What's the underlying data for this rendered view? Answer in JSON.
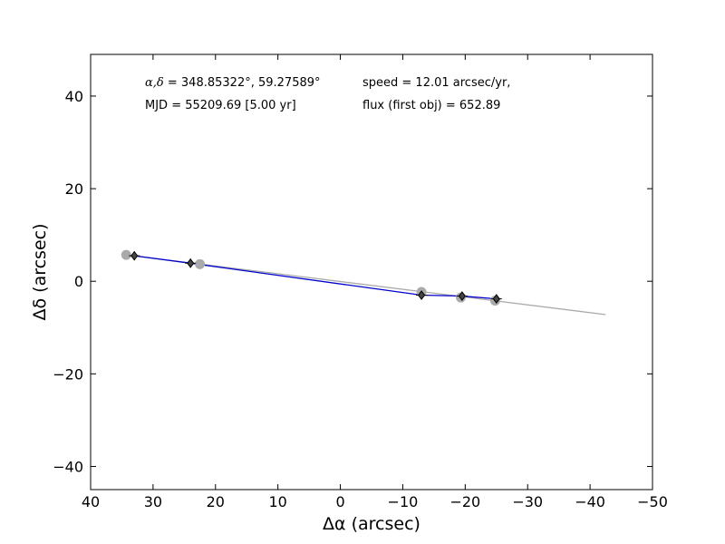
{
  "chart_data": {
    "type": "scatter",
    "xlabel": "Δα (arcsec)",
    "ylabel": "Δδ (arcsec)",
    "xlim": [
      40,
      -50
    ],
    "ylim": [
      -45,
      49
    ],
    "x_ticks": [
      40,
      30,
      20,
      10,
      0,
      -10,
      -20,
      -30,
      -40,
      -50
    ],
    "y_ticks": [
      40,
      20,
      0,
      -20,
      -40
    ],
    "x_tick_labels": [
      "40",
      "30",
      "20",
      "10",
      "0",
      "−10",
      "−20",
      "−30",
      "−40",
      "−50"
    ],
    "y_tick_labels": [
      "40",
      "20",
      "0",
      "−20",
      "−40"
    ],
    "grid": false,
    "annotations": {
      "coords_symbol": "α,δ",
      "coords_values": "= 348.85322°, 59.27589°",
      "mjd": "MJD = 55209.69 [5.00 yr]",
      "speed": "speed = 12.01 arcsec/yr,",
      "flux": "flux (first obj) = 652.89"
    },
    "series": [
      {
        "style": "gray-circles",
        "color": "#aaaaaa",
        "x": [
          34.3,
          22.5,
          -13.0,
          -19.3,
          -24.8
        ],
        "y": [
          5.7,
          3.7,
          -2.3,
          -3.5,
          -4.2
        ]
      },
      {
        "style": "black-diamonds-blue-path",
        "color": "#000000",
        "line_color": "#0000cc",
        "x": [
          33.0,
          24.0,
          -13.0,
          -19.5,
          -25.0
        ],
        "y": [
          5.5,
          3.9,
          -3.0,
          -3.2,
          -3.8
        ]
      }
    ],
    "fit_line": {
      "color": "#aaaaaa",
      "x": [
        34.3,
        -42.5
      ],
      "y": [
        5.7,
        -7.2
      ]
    }
  }
}
